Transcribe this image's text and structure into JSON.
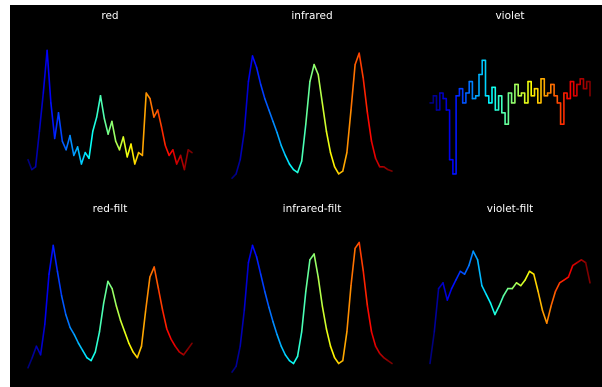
{
  "chart_data": [
    {
      "type": "line",
      "title": "red",
      "ylim": [
        0,
        1
      ],
      "colormap": "jet",
      "values": [
        0.15,
        0.08,
        0.1,
        0.35,
        0.62,
        0.92,
        0.55,
        0.3,
        0.48,
        0.28,
        0.22,
        0.32,
        0.18,
        0.24,
        0.12,
        0.2,
        0.16,
        0.35,
        0.45,
        0.6,
        0.44,
        0.33,
        0.42,
        0.28,
        0.22,
        0.31,
        0.17,
        0.26,
        0.12,
        0.2,
        0.18,
        0.62,
        0.58,
        0.45,
        0.5,
        0.38,
        0.25,
        0.18,
        0.22,
        0.12,
        0.18,
        0.08,
        0.22,
        0.2
      ]
    },
    {
      "type": "line",
      "title": "infrared",
      "ylim": [
        0,
        1
      ],
      "colormap": "jet",
      "values": [
        0.02,
        0.05,
        0.15,
        0.35,
        0.7,
        0.88,
        0.8,
        0.68,
        0.58,
        0.5,
        0.42,
        0.34,
        0.25,
        0.18,
        0.12,
        0.08,
        0.06,
        0.14,
        0.4,
        0.7,
        0.82,
        0.75,
        0.55,
        0.35,
        0.2,
        0.1,
        0.05,
        0.07,
        0.2,
        0.5,
        0.82,
        0.9,
        0.72,
        0.48,
        0.28,
        0.16,
        0.1,
        0.1,
        0.08,
        0.07
      ]
    },
    {
      "type": "line",
      "title": "violet",
      "ylim": [
        0,
        1
      ],
      "colormap": "jet",
      "values": [
        0.55,
        0.6,
        0.5,
        0.62,
        0.58,
        0.5,
        0.15,
        0.05,
        0.6,
        0.65,
        0.55,
        0.62,
        0.7,
        0.58,
        0.6,
        0.75,
        0.85,
        0.6,
        0.55,
        0.66,
        0.5,
        0.6,
        0.48,
        0.4,
        0.62,
        0.55,
        0.68,
        0.6,
        0.62,
        0.55,
        0.7,
        0.6,
        0.65,
        0.55,
        0.72,
        0.6,
        0.62,
        0.68,
        0.6,
        0.55,
        0.4,
        0.62,
        0.58,
        0.7,
        0.6,
        0.68,
        0.72,
        0.65,
        0.7,
        0.6
      ]
    },
    {
      "type": "line",
      "title": "red-filt",
      "ylim": [
        0,
        1
      ],
      "colormap": "jet",
      "values": [
        0.05,
        0.12,
        0.2,
        0.14,
        0.35,
        0.7,
        0.9,
        0.72,
        0.55,
        0.42,
        0.33,
        0.28,
        0.22,
        0.17,
        0.12,
        0.1,
        0.16,
        0.3,
        0.5,
        0.65,
        0.6,
        0.48,
        0.38,
        0.3,
        0.22,
        0.16,
        0.12,
        0.2,
        0.45,
        0.68,
        0.75,
        0.6,
        0.45,
        0.32,
        0.25,
        0.2,
        0.16,
        0.14,
        0.18,
        0.22
      ]
    },
    {
      "type": "line",
      "title": "infrared-filt",
      "ylim": [
        0,
        1
      ],
      "colormap": "jet",
      "values": [
        0.02,
        0.06,
        0.2,
        0.45,
        0.78,
        0.9,
        0.82,
        0.7,
        0.58,
        0.47,
        0.37,
        0.28,
        0.2,
        0.14,
        0.1,
        0.08,
        0.13,
        0.3,
        0.58,
        0.8,
        0.84,
        0.68,
        0.48,
        0.32,
        0.2,
        0.12,
        0.08,
        0.1,
        0.3,
        0.62,
        0.88,
        0.92,
        0.72,
        0.48,
        0.3,
        0.2,
        0.15,
        0.12,
        0.1,
        0.08
      ]
    },
    {
      "type": "line",
      "title": "violet-filt",
      "ylim": [
        0,
        1
      ],
      "colormap": "jet",
      "values": [
        0.08,
        0.3,
        0.6,
        0.64,
        0.52,
        0.6,
        0.66,
        0.72,
        0.7,
        0.76,
        0.86,
        0.8,
        0.62,
        0.56,
        0.5,
        0.42,
        0.48,
        0.55,
        0.6,
        0.6,
        0.64,
        0.62,
        0.66,
        0.72,
        0.7,
        0.58,
        0.45,
        0.36,
        0.48,
        0.58,
        0.64,
        0.66,
        0.68,
        0.76,
        0.78,
        0.8,
        0.78,
        0.64
      ]
    }
  ]
}
